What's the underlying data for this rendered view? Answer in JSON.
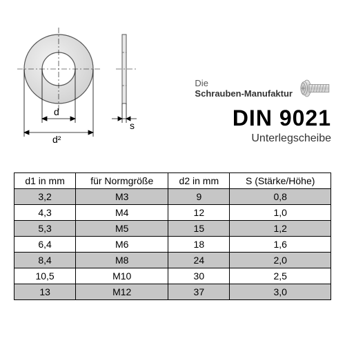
{
  "brand": {
    "line1": "Die",
    "line2": "Schrauben-Manufaktur"
  },
  "title": "DIN 9021",
  "subtitle": "Unterlegscheibe",
  "diagram": {
    "d_label": "d",
    "d2_label": "d²",
    "s_label": "s"
  },
  "table": {
    "columns": [
      "d1 in mm",
      "für Normgröße",
      "d2 in mm",
      "S (Stärke/Höhe)"
    ],
    "rows": [
      [
        "3,2",
        "M3",
        "9",
        "0,8"
      ],
      [
        "4,3",
        "M4",
        "12",
        "1,0"
      ],
      [
        "5,3",
        "M5",
        "15",
        "1,2"
      ],
      [
        "6,4",
        "M6",
        "18",
        "1,6"
      ],
      [
        "8,4",
        "M8",
        "24",
        "2,0"
      ],
      [
        "10,5",
        "M10",
        "30",
        "2,5"
      ],
      [
        "13",
        "M12",
        "37",
        "3,0"
      ]
    ],
    "row_shade_odd": "#c6c6c6",
    "row_shade_even": "#ffffff"
  },
  "colors": {
    "line": "#000000",
    "washer_fill": "#e8e8e8",
    "washer_stroke": "#555555",
    "screw_fill": "#d7d7d7",
    "screw_stroke": "#888888"
  }
}
